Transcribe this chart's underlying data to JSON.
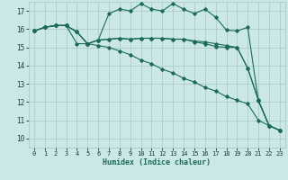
{
  "xlabel": "Humidex (Indice chaleur)",
  "xlim": [
    -0.5,
    23.5
  ],
  "ylim": [
    9.5,
    17.5
  ],
  "xticks": [
    0,
    1,
    2,
    3,
    4,
    5,
    6,
    7,
    8,
    9,
    10,
    11,
    12,
    13,
    14,
    15,
    16,
    17,
    18,
    19,
    20,
    21,
    22,
    23
  ],
  "yticks": [
    10,
    11,
    12,
    13,
    14,
    15,
    16,
    17
  ],
  "bg_color": "#cce8e6",
  "grid_color": "#aaccca",
  "line_color": "#1a6b5a",
  "lines": [
    [
      15.9,
      16.1,
      16.2,
      16.2,
      15.85,
      15.2,
      15.4,
      16.85,
      17.1,
      17.0,
      17.4,
      17.1,
      17.0,
      17.4,
      17.1,
      16.85,
      17.1,
      16.65,
      15.95,
      15.9,
      16.1,
      12.05,
      10.7,
      10.45
    ],
    [
      15.9,
      16.1,
      16.2,
      16.2,
      15.85,
      15.2,
      15.4,
      15.45,
      15.5,
      15.45,
      15.5,
      15.5,
      15.5,
      15.45,
      15.45,
      15.35,
      15.3,
      15.2,
      15.1,
      15.0,
      13.85,
      12.1,
      10.7,
      10.45
    ],
    [
      15.9,
      16.1,
      16.2,
      16.2,
      15.85,
      15.2,
      15.4,
      15.45,
      15.5,
      15.45,
      15.5,
      15.5,
      15.5,
      15.45,
      15.45,
      15.3,
      15.2,
      15.05,
      15.0,
      15.0,
      13.85,
      12.1,
      10.7,
      10.45
    ],
    [
      15.9,
      16.1,
      16.2,
      16.2,
      15.2,
      15.2,
      15.1,
      15.0,
      14.8,
      14.6,
      14.3,
      14.1,
      13.8,
      13.6,
      13.3,
      13.1,
      12.8,
      12.6,
      12.3,
      12.1,
      11.9,
      11.0,
      10.7,
      10.45
    ]
  ]
}
